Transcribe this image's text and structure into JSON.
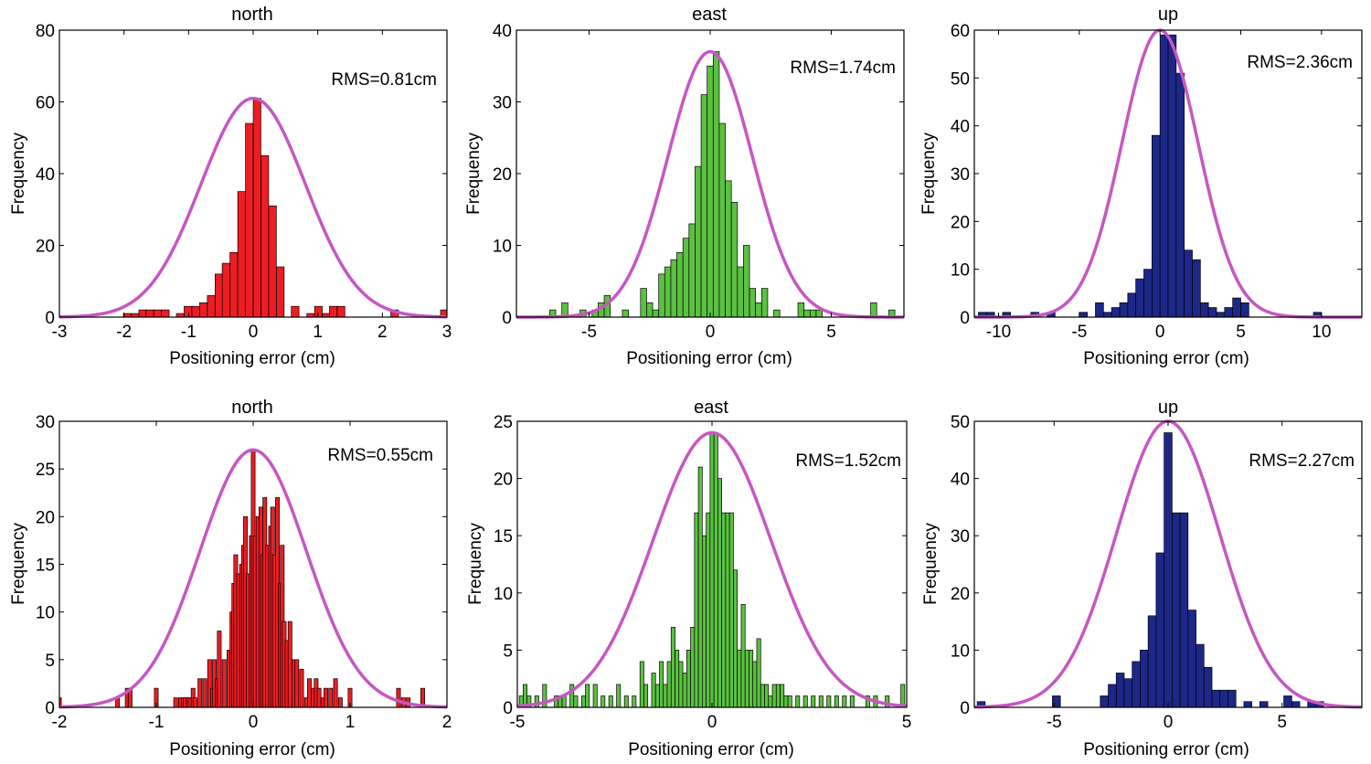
{
  "figure": {
    "fit_color": "#c657c3"
  },
  "chart_data": [
    {
      "type": "bar",
      "title": "north",
      "xlabel": "Positioning error (cm)",
      "ylabel": "Frequency",
      "annotation": "RMS=0.81cm",
      "xlim": [
        -3,
        3
      ],
      "ylim": [
        0,
        80
      ],
      "xticks": [
        -3,
        -2,
        -1,
        0,
        1,
        2,
        3
      ],
      "xtick_labels": [
        "-3",
        "-2",
        "-1",
        "0",
        "1",
        "2",
        "3"
      ],
      "yticks": [
        0,
        20,
        40,
        60,
        80
      ],
      "ytick_labels": [
        "0",
        "20",
        "40",
        "60",
        "80"
      ],
      "bar_color": "#ee1d23",
      "bin_width": 0.118,
      "bins": [
        -1.95,
        -1.83,
        -1.71,
        -1.6,
        -1.48,
        -1.36,
        -1.13,
        -1.01,
        -0.89,
        -0.77,
        -0.65,
        -0.53,
        -0.42,
        -0.3,
        -0.18,
        -0.06,
        0.06,
        0.18,
        0.3,
        0.42,
        0.65,
        0.89,
        1.01,
        1.13,
        1.24,
        1.36,
        2.19,
        2.96
      ],
      "values": [
        1,
        1,
        2,
        2,
        2,
        2,
        1,
        3,
        3,
        4,
        6,
        12,
        15,
        18,
        35,
        54,
        61,
        45,
        31,
        14,
        3,
        1,
        3,
        1,
        3,
        3,
        2,
        2
      ],
      "fit_peak": 61,
      "fit_sigma": 0.81,
      "fit_mean": 0
    },
    {
      "type": "bar",
      "title": "east",
      "xlabel": "Positioning error (cm)",
      "ylabel": "Frequency",
      "annotation": "RMS=1.74cm",
      "xlim": [
        -8,
        8
      ],
      "ylim": [
        0,
        40
      ],
      "xticks": [
        -5,
        0,
        5
      ],
      "xtick_labels": [
        "-5",
        "0",
        "5"
      ],
      "yticks": [
        0,
        10,
        20,
        30,
        40
      ],
      "ytick_labels": [
        "0",
        "10",
        "20",
        "30",
        "40"
      ],
      "bar_color": "#5bc140",
      "bin_width": 0.25,
      "bins": [
        -6.5,
        -6.0,
        -5.25,
        -4.75,
        -4.5,
        -4.25,
        -3.5,
        -2.75,
        -2.5,
        -2.25,
        -2.0,
        -1.75,
        -1.5,
        -1.25,
        -1.0,
        -0.75,
        -0.5,
        -0.25,
        0.0,
        0.25,
        0.5,
        0.75,
        1.0,
        1.25,
        1.5,
        1.75,
        2.0,
        2.25,
        2.75,
        3.75,
        4.0,
        4.25,
        4.5,
        6.75,
        7.5
      ],
      "values": [
        1,
        2,
        1,
        1,
        2,
        3,
        1,
        4,
        2,
        1,
        6,
        7,
        8,
        9,
        11,
        13,
        21,
        31,
        35,
        37,
        27,
        19,
        16,
        7,
        10,
        4,
        2,
        4,
        1,
        2,
        1,
        1,
        1,
        2,
        1
      ],
      "fit_peak": 37,
      "fit_sigma": 1.74,
      "fit_mean": 0
    },
    {
      "type": "bar",
      "title": "up",
      "xlabel": "Positioning error (cm)",
      "ylabel": "Frequency",
      "annotation": "RMS=2.36cm",
      "xlim": [
        -11.5,
        12.5
      ],
      "ylim": [
        0,
        60
      ],
      "xticks": [
        -10,
        -5,
        0,
        5,
        10
      ],
      "xtick_labels": [
        "-10",
        "-5",
        "0",
        "5",
        "10"
      ],
      "yticks": [
        0,
        10,
        20,
        30,
        40,
        50,
        60
      ],
      "ytick_labels": [
        "0",
        "10",
        "20",
        "30",
        "40",
        "50",
        "60"
      ],
      "bar_color": "#1d2787",
      "bin_width": 0.5,
      "bins": [
        -11.0,
        -10.5,
        -9.5,
        -7.75,
        -6.75,
        -4.75,
        -3.75,
        -3.25,
        -2.75,
        -2.25,
        -1.75,
        -1.25,
        -0.75,
        -0.25,
        0.25,
        0.75,
        1.25,
        1.75,
        2.25,
        2.75,
        3.25,
        3.75,
        4.25,
        4.75,
        5.25,
        9.75
      ],
      "values": [
        1,
        1,
        1,
        1,
        1,
        1,
        3,
        1,
        2,
        3,
        5,
        8,
        10,
        38,
        59,
        59,
        51,
        14,
        12,
        3,
        2,
        1,
        2,
        4,
        3,
        1
      ],
      "fit_peak": 60,
      "fit_sigma": 2.36,
      "fit_mean": 0
    },
    {
      "type": "bar",
      "title": "north",
      "xlabel": "Positioning error (cm)",
      "ylabel": "Frequency",
      "annotation": "RMS=0.55cm",
      "xlim": [
        -2,
        2
      ],
      "ylim": [
        0,
        30
      ],
      "xticks": [
        -2,
        -1,
        0,
        1,
        2
      ],
      "xtick_labels": [
        "-2",
        "-1",
        "0",
        "1",
        "2"
      ],
      "yticks": [
        0,
        5,
        10,
        15,
        20,
        25,
        30
      ],
      "ytick_labels": [
        "0",
        "5",
        "10",
        "15",
        "20",
        "25",
        "30"
      ],
      "bar_color": "#ee1d23",
      "bin_width": 0.04,
      "bins": [
        -2.0,
        -1.4,
        -1.3,
        -1.27,
        -1.0,
        -0.8,
        -0.75,
        -0.72,
        -0.7,
        -0.67,
        -0.65,
        -0.62,
        -0.6,
        -0.55,
        -0.5,
        -0.45,
        -0.42,
        -0.4,
        -0.37,
        -0.35,
        -0.3,
        -0.25,
        -0.22,
        -0.2,
        -0.18,
        -0.15,
        -0.12,
        -0.1,
        -0.08,
        -0.05,
        -0.02,
        0.0,
        0.02,
        0.05,
        0.08,
        0.1,
        0.12,
        0.15,
        0.18,
        0.2,
        0.22,
        0.25,
        0.28,
        0.3,
        0.32,
        0.35,
        0.38,
        0.42,
        0.45,
        0.5,
        0.55,
        0.58,
        0.62,
        0.65,
        0.68,
        0.72,
        0.75,
        0.8,
        0.85,
        0.9,
        1.0,
        1.5,
        1.55,
        1.6,
        1.75
      ],
      "values": [
        1,
        1,
        2,
        2,
        2,
        1,
        1,
        1,
        1,
        1,
        1,
        2,
        1,
        3,
        3,
        5,
        2,
        5,
        3,
        8,
        5,
        6,
        10,
        13,
        16,
        14,
        15,
        17,
        20,
        14,
        18,
        27,
        18,
        20,
        21,
        16,
        22,
        17,
        19,
        21,
        16,
        22,
        13,
        17,
        9,
        7,
        9,
        5,
        5,
        4,
        1,
        3,
        2,
        3,
        2,
        1,
        2,
        2,
        3,
        1,
        2,
        2,
        1,
        1,
        2
      ],
      "fit_peak": 27,
      "fit_sigma": 0.55,
      "fit_mean": 0
    },
    {
      "type": "bar",
      "title": "east",
      "xlabel": "Positioning error (cm)",
      "ylabel": "Frequency",
      "annotation": "RMS=1.52cm",
      "xlim": [
        -5,
        5
      ],
      "ylim": [
        0,
        25
      ],
      "xticks": [
        -5,
        0,
        5
      ],
      "xtick_labels": [
        "-5",
        "0",
        "5"
      ],
      "yticks": [
        0,
        5,
        10,
        15,
        20,
        25
      ],
      "ytick_labels": [
        "0",
        "5",
        "10",
        "15",
        "20",
        "25"
      ],
      "bar_color": "#5bc140",
      "bin_width": 0.1,
      "bins": [
        -4.9,
        -4.8,
        -4.7,
        -4.5,
        -4.3,
        -4.0,
        -3.9,
        -3.8,
        -3.6,
        -3.5,
        -3.3,
        -3.2,
        -3.0,
        -2.8,
        -2.6,
        -2.4,
        -2.2,
        -2.0,
        -1.8,
        -1.7,
        -1.5,
        -1.4,
        -1.3,
        -1.2,
        -1.1,
        -1.0,
        -0.9,
        -0.8,
        -0.7,
        -0.6,
        -0.5,
        -0.4,
        -0.3,
        -0.2,
        -0.1,
        0.0,
        0.1,
        0.2,
        0.3,
        0.4,
        0.5,
        0.6,
        0.7,
        0.8,
        0.9,
        1.0,
        1.1,
        1.2,
        1.3,
        1.4,
        1.5,
        1.6,
        1.7,
        1.8,
        1.9,
        2.0,
        2.2,
        2.4,
        2.6,
        2.8,
        3.0,
        3.2,
        3.4,
        3.6,
        4.0,
        4.2,
        4.5,
        4.9
      ],
      "values": [
        1,
        2,
        1,
        1,
        2,
        1,
        1,
        1,
        2,
        1,
        1,
        2,
        2,
        1,
        1,
        2,
        1,
        1,
        4,
        2,
        3,
        2,
        4,
        2,
        4,
        7,
        5,
        4,
        3,
        5,
        7,
        17,
        21,
        15,
        17,
        24,
        24,
        20,
        17,
        17,
        17,
        12,
        5,
        9,
        5,
        5,
        4,
        6,
        2,
        2,
        1,
        2,
        2,
        2,
        1,
        1,
        1,
        1,
        1,
        1,
        1,
        1,
        1,
        1,
        1,
        1,
        1,
        2
      ],
      "fit_peak": 24,
      "fit_sigma": 1.52,
      "fit_mean": 0
    },
    {
      "type": "bar",
      "title": "up",
      "xlabel": "Positioning error (cm)",
      "ylabel": "Frequency",
      "annotation": "RMS=2.27cm",
      "xlim": [
        -8.5,
        8.5
      ],
      "ylim": [
        0,
        50
      ],
      "xticks": [
        -5,
        0,
        5
      ],
      "xtick_labels": [
        "-5",
        "0",
        "5"
      ],
      "yticks": [
        0,
        10,
        20,
        30,
        40,
        50
      ],
      "ytick_labels": [
        "0",
        "10",
        "20",
        "30",
        "40",
        "50"
      ],
      "bar_color": "#1d2787",
      "bin_width": 0.35,
      "bins": [
        -8.2,
        -4.9,
        -2.8,
        -2.45,
        -2.1,
        -1.75,
        -1.4,
        -1.05,
        -0.7,
        -0.35,
        0.0,
        0.35,
        0.7,
        1.05,
        1.4,
        1.75,
        2.1,
        2.45,
        2.8,
        3.5,
        4.2,
        5.25,
        5.6,
        6.3,
        6.65
      ],
      "values": [
        1,
        2,
        2,
        4,
        6,
        5,
        8,
        10,
        16,
        27,
        48,
        34,
        34,
        17,
        11,
        7,
        3,
        3,
        3,
        1,
        1,
        2,
        1,
        1,
        1
      ],
      "fit_peak": 50,
      "fit_sigma": 2.27,
      "fit_mean": 0
    }
  ]
}
